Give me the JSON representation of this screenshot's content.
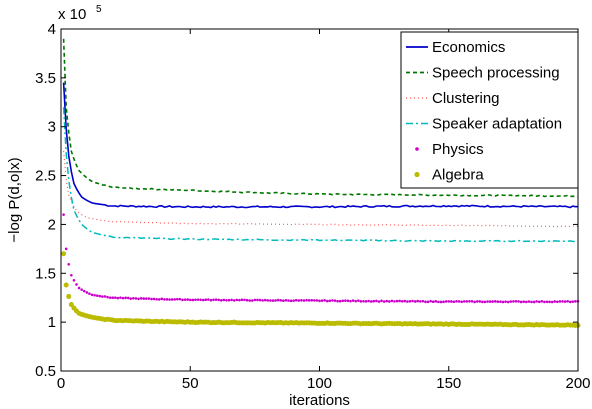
{
  "chart_data": {
    "type": "line",
    "title": "",
    "xlabel": "iterations",
    "ylabel": "−log P(d,o|x)",
    "y_exponent_label": "x 10",
    "y_exponent": "5",
    "xlim": [
      0,
      200
    ],
    "ylim": [
      0.5,
      4
    ],
    "xticks": [
      0,
      50,
      100,
      150,
      200
    ],
    "yticks": [
      0.5,
      1,
      1.5,
      2,
      2.5,
      3,
      3.5,
      4
    ],
    "ytick_labels": [
      "0.5",
      "1",
      "1.5",
      "2",
      "2.5",
      "3",
      "3.5",
      "4"
    ],
    "grid": false,
    "legend_position": "top-right",
    "series": [
      {
        "name": "Economics",
        "color": "#0000cc",
        "style": "solid",
        "start": 3.45,
        "end": 2.18,
        "rate": 0.24,
        "noise": 0.008,
        "shape": [
          [
            1,
            3.45
          ],
          [
            3,
            2.7
          ],
          [
            5,
            2.42
          ],
          [
            8,
            2.28
          ],
          [
            12,
            2.22
          ],
          [
            20,
            2.19
          ],
          [
            50,
            2.18
          ],
          [
            100,
            2.18
          ],
          [
            150,
            2.19
          ],
          [
            200,
            2.18
          ]
        ]
      },
      {
        "name": "Speech processing",
        "color": "#007700",
        "style": "dashed",
        "start": 3.9,
        "end": 2.3,
        "rate": 0.2,
        "noise": 0.006,
        "shape": [
          [
            1,
            3.9
          ],
          [
            2,
            3.2
          ],
          [
            4,
            2.75
          ],
          [
            7,
            2.55
          ],
          [
            12,
            2.44
          ],
          [
            20,
            2.38
          ],
          [
            50,
            2.35
          ],
          [
            100,
            2.31
          ],
          [
            150,
            2.3
          ],
          [
            200,
            2.29
          ]
        ]
      },
      {
        "name": "Clustering",
        "color": "#ff5555",
        "style": "dotted",
        "start": 2.75,
        "end": 1.98,
        "rate": 0.2,
        "noise": 0.004,
        "shape": [
          [
            1,
            2.75
          ],
          [
            3,
            2.3
          ],
          [
            6,
            2.14
          ],
          [
            10,
            2.07
          ],
          [
            20,
            2.03
          ],
          [
            50,
            2.01
          ],
          [
            100,
            2.0
          ],
          [
            150,
            1.99
          ],
          [
            200,
            1.98
          ]
        ]
      },
      {
        "name": "Speaker adaptation",
        "color": "#00bbbb",
        "style": "dashdot",
        "start": 3.2,
        "end": 1.83,
        "rate": 0.22,
        "noise": 0.005,
        "shape": [
          [
            1,
            3.2
          ],
          [
            3,
            2.45
          ],
          [
            5,
            2.15
          ],
          [
            8,
            2.0
          ],
          [
            12,
            1.92
          ],
          [
            20,
            1.87
          ],
          [
            50,
            1.85
          ],
          [
            100,
            1.84
          ],
          [
            150,
            1.83
          ],
          [
            200,
            1.83
          ]
        ]
      },
      {
        "name": "Physics",
        "color": "#cc00cc",
        "style": "dot-marker",
        "start": 2.1,
        "end": 1.21,
        "rate": 0.2,
        "noise": 0.004,
        "shape": [
          [
            1,
            2.1
          ],
          [
            2,
            1.75
          ],
          [
            4,
            1.48
          ],
          [
            7,
            1.35
          ],
          [
            12,
            1.28
          ],
          [
            20,
            1.25
          ],
          [
            50,
            1.23
          ],
          [
            100,
            1.22
          ],
          [
            150,
            1.21
          ],
          [
            200,
            1.21
          ]
        ]
      },
      {
        "name": "Algebra",
        "color": "#bbbb00",
        "style": "circle-marker",
        "start": 1.7,
        "end": 0.97,
        "rate": 0.18,
        "noise": 0.004,
        "shape": [
          [
            1,
            1.7
          ],
          [
            2,
            1.38
          ],
          [
            4,
            1.18
          ],
          [
            7,
            1.09
          ],
          [
            12,
            1.05
          ],
          [
            20,
            1.02
          ],
          [
            50,
            1.0
          ],
          [
            100,
            0.99
          ],
          [
            150,
            0.98
          ],
          [
            200,
            0.97
          ]
        ]
      }
    ]
  }
}
